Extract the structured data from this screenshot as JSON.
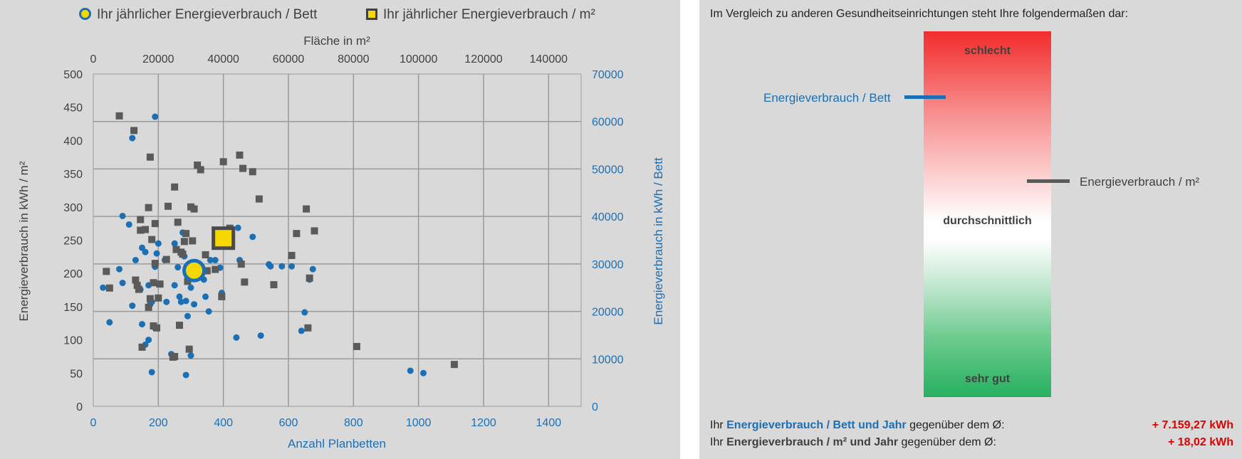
{
  "legend": {
    "bett_label": "Ihr jährlicher Energieverbrauch / Bett",
    "m2_label": "Ihr jährlicher Energieverbrauch / m²"
  },
  "colors": {
    "blue": "#1b6fb5",
    "grey": "#5a5a5a",
    "highlight": "#f5d800",
    "bad": "#f32b2b",
    "good": "#27b060"
  },
  "chart_data": {
    "type": "scatter",
    "grid": true,
    "axes": {
      "x_bottom": {
        "label": "Anzahl Planbetten",
        "range": [
          0,
          1500
        ],
        "ticks": [
          0,
          200,
          400,
          600,
          800,
          1000,
          1200,
          1400
        ]
      },
      "x_top": {
        "label": "Fläche in m²",
        "range": [
          0,
          150000
        ],
        "ticks": [
          0,
          20000,
          40000,
          60000,
          80000,
          100000,
          120000,
          140000
        ]
      },
      "y_left": {
        "label": "Energieverbrauch in kWh / m²",
        "range": [
          0,
          500
        ],
        "ticks": [
          0,
          50,
          100,
          150,
          200,
          250,
          300,
          350,
          400,
          450,
          500
        ]
      },
      "y_right": {
        "label": "Energieverbrauch in kWh / Bett",
        "range": [
          0,
          70000
        ],
        "ticks": [
          0,
          10000,
          20000,
          30000,
          40000,
          50000,
          60000,
          70000
        ]
      }
    },
    "series": [
      {
        "marker": "circle",
        "x_axis": "x_bottom",
        "y_axis": "y_right",
        "points": [
          [
            30,
            25000
          ],
          [
            50,
            17700
          ],
          [
            80,
            28900
          ],
          [
            90,
            40100
          ],
          [
            90,
            26000
          ],
          [
            110,
            38300
          ],
          [
            120,
            21200
          ],
          [
            120,
            56500
          ],
          [
            130,
            30800
          ],
          [
            145,
            24600
          ],
          [
            150,
            33400
          ],
          [
            150,
            17300
          ],
          [
            160,
            32500
          ],
          [
            160,
            13000
          ],
          [
            170,
            14000
          ],
          [
            170,
            25500
          ],
          [
            175,
            21500
          ],
          [
            180,
            7200
          ],
          [
            180,
            22000
          ],
          [
            190,
            29400
          ],
          [
            190,
            16500
          ],
          [
            190,
            61000
          ],
          [
            195,
            32200
          ],
          [
            200,
            34300
          ],
          [
            200,
            25700
          ],
          [
            205,
            25700
          ],
          [
            220,
            30800
          ],
          [
            225,
            22000
          ],
          [
            240,
            11000
          ],
          [
            250,
            25500
          ],
          [
            250,
            34300
          ],
          [
            260,
            29300
          ],
          [
            265,
            23100
          ],
          [
            270,
            22000
          ],
          [
            275,
            36600
          ],
          [
            280,
            31600
          ],
          [
            285,
            6600
          ],
          [
            285,
            22200
          ],
          [
            290,
            19000
          ],
          [
            295,
            28800
          ],
          [
            300,
            10700
          ],
          [
            300,
            25000
          ],
          [
            305,
            28300
          ],
          [
            310,
            21500
          ],
          [
            320,
            29500
          ],
          [
            340,
            26700
          ],
          [
            345,
            23100
          ],
          [
            355,
            20000
          ],
          [
            360,
            30800
          ],
          [
            375,
            30800
          ],
          [
            390,
            29200
          ],
          [
            395,
            23900
          ],
          [
            440,
            14500
          ],
          [
            445,
            37600
          ],
          [
            450,
            30800
          ],
          [
            490,
            35700
          ],
          [
            515,
            14900
          ],
          [
            540,
            29900
          ],
          [
            545,
            29500
          ],
          [
            580,
            29500
          ],
          [
            610,
            29500
          ],
          [
            640,
            15900
          ],
          [
            650,
            19800
          ],
          [
            665,
            26700
          ],
          [
            675,
            28900
          ],
          [
            975,
            7500
          ],
          [
            1015,
            7000
          ]
        ]
      },
      {
        "marker": "square",
        "x_axis": "x_top",
        "y_axis": "y_left",
        "points": [
          [
            4000,
            203
          ],
          [
            5000,
            178
          ],
          [
            8000,
            437
          ],
          [
            12500,
            415
          ],
          [
            13000,
            190
          ],
          [
            13500,
            182
          ],
          [
            14000,
            176
          ],
          [
            14500,
            265
          ],
          [
            14500,
            281
          ],
          [
            15000,
            89
          ],
          [
            16000,
            266
          ],
          [
            17000,
            299
          ],
          [
            17500,
            375
          ],
          [
            17000,
            149
          ],
          [
            17500,
            162
          ],
          [
            18000,
            251
          ],
          [
            18500,
            186
          ],
          [
            18500,
            121
          ],
          [
            19000,
            215
          ],
          [
            19000,
            275
          ],
          [
            19500,
            118
          ],
          [
            20000,
            163
          ],
          [
            20500,
            184
          ],
          [
            22500,
            221
          ],
          [
            23000,
            301
          ],
          [
            24500,
            74
          ],
          [
            25000,
            75
          ],
          [
            25000,
            330
          ],
          [
            25500,
            236
          ],
          [
            26000,
            277
          ],
          [
            26500,
            122
          ],
          [
            27000,
            232
          ],
          [
            27500,
            229
          ],
          [
            28000,
            248
          ],
          [
            28500,
            260
          ],
          [
            29000,
            188
          ],
          [
            29500,
            86
          ],
          [
            30000,
            300
          ],
          [
            30500,
            249
          ],
          [
            31000,
            297
          ],
          [
            32000,
            363
          ],
          [
            33000,
            356
          ],
          [
            34500,
            228
          ],
          [
            35000,
            204
          ],
          [
            37500,
            206
          ],
          [
            39500,
            165
          ],
          [
            40000,
            368
          ],
          [
            42000,
            268
          ],
          [
            45000,
            378
          ],
          [
            45500,
            214
          ],
          [
            46000,
            358
          ],
          [
            46500,
            187
          ],
          [
            49000,
            353
          ],
          [
            51000,
            312
          ],
          [
            55500,
            183
          ],
          [
            61000,
            227
          ],
          [
            62500,
            260
          ],
          [
            65500,
            297
          ],
          [
            66000,
            118
          ],
          [
            66500,
            193
          ],
          [
            68000,
            264
          ],
          [
            81000,
            90
          ],
          [
            111000,
            63
          ]
        ]
      }
    ],
    "highlighted": [
      {
        "series": "bett",
        "x": 310,
        "y": 28600
      },
      {
        "series": "m2",
        "x": 40000,
        "y": 253
      }
    ]
  },
  "comparison": {
    "intro": "Im Vergleich zu anderen Gesundheitseinrichtungen steht Ihre folgendermaßen dar:",
    "scale_bad": "schlecht",
    "scale_mid": "durchschnittlich",
    "scale_good": "sehr gut",
    "marker_bett": "Energieverbrauch / Bett",
    "marker_m2": "Energieverbrauch / m²",
    "bett_level": 0.18,
    "m2_level": 0.41
  },
  "summary": {
    "line1_prefix": "Ihr ",
    "line1_bold": "Energieverbrauch / Bett und Jahr",
    "line1_suffix": " gegenüber dem Ø:",
    "line1_value": "+ 7.159,27 kWh",
    "line2_prefix": "Ihr ",
    "line2_bold": "Energieverbrauch / m² und Jahr",
    "line2_suffix": " gegenüber dem Ø:",
    "line2_value": "+ 18,02 kWh"
  }
}
